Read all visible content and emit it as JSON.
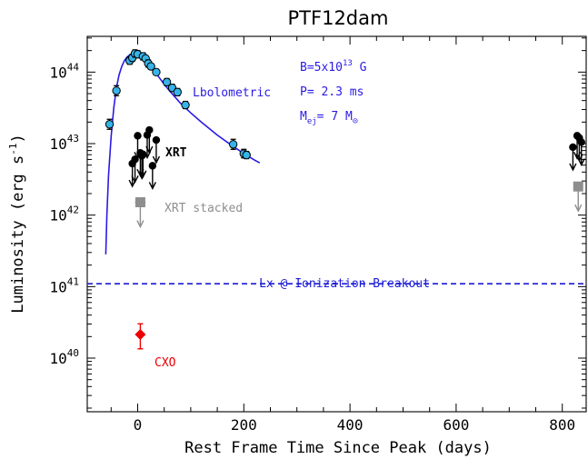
{
  "chart_data": {
    "type": "scatter",
    "title": "PTF12dam",
    "xlabel": "Rest Frame Time Since Peak (days)",
    "ylabel": "Luminosity (erg s",
    "ylabel_sup": "-1",
    "ylabel_close": ")",
    "xlim": [
      -95,
      845
    ],
    "ylim_log10": [
      39.25,
      44.5
    ],
    "y_scale": "log",
    "x_ticks": [
      0,
      200,
      400,
      600,
      800
    ],
    "x_tick_labels": [
      "0",
      "200",
      "400",
      "600",
      "800"
    ],
    "y_ticks": [
      40,
      41,
      42,
      43,
      44
    ],
    "y_tick_base": "10",
    "y_tick_exponents": [
      "40",
      "41",
      "42",
      "43",
      "44"
    ],
    "colors": {
      "axis": "#000000",
      "model": "#2a1ae6",
      "bolometric_fill": "#36b4e8",
      "xrt": "#000000",
      "stacked": "#8e8e8e",
      "cxo": "#ee0000",
      "breakout": "#1a1ad8"
    },
    "model_curve": {
      "name": "Lbolometric",
      "x": [
        -60,
        -58,
        -55,
        -50,
        -45,
        -40,
        -35,
        -30,
        -25,
        -20,
        -15,
        -10,
        -5,
        0,
        5,
        10,
        20,
        30,
        40,
        50,
        60,
        80,
        100,
        120,
        150,
        180,
        200,
        220,
        230
      ],
      "y_log10": [
        41.45,
        42.0,
        42.55,
        43.1,
        43.5,
        43.78,
        43.96,
        44.08,
        44.16,
        44.21,
        44.24,
        44.25,
        44.25,
        44.24,
        44.22,
        44.19,
        44.12,
        44.03,
        43.93,
        43.83,
        43.74,
        43.57,
        43.43,
        43.3,
        43.12,
        42.96,
        42.86,
        42.77,
        42.73
      ]
    },
    "bolometric_points": {
      "x": [
        -53,
        -40,
        -15,
        -10,
        -5,
        0,
        10,
        15,
        20,
        25,
        35,
        55,
        65,
        75,
        90,
        180,
        200,
        205
      ],
      "y_log10": [
        43.27,
        43.74,
        44.16,
        44.2,
        44.26,
        44.25,
        44.22,
        44.19,
        44.12,
        44.08,
        44.0,
        43.86,
        43.78,
        43.72,
        43.54,
        42.99,
        42.86,
        42.84
      ],
      "err": [
        0.07,
        0.07,
        0.05,
        0.05,
        0.05,
        0.05,
        0.05,
        0.04,
        0.05,
        0.04,
        0.04,
        0.05,
        0.05,
        0.05,
        0.05,
        0.07,
        0.06,
        0.05
      ]
    },
    "xrt_upper_limits": {
      "x": [
        -10,
        -5,
        0,
        5,
        8,
        10,
        18,
        22,
        28,
        35,
        820,
        828,
        832,
        836
      ],
      "y_log10": [
        42.72,
        42.78,
        43.11,
        42.87,
        42.83,
        42.85,
        43.12,
        43.19,
        42.69,
        43.05,
        42.95,
        43.11,
        43.08,
        43.02
      ]
    },
    "xrt_label": "XRT",
    "xrt_stacked": {
      "label": "XRT stacked",
      "points": [
        {
          "x": 5,
          "y_log10": 42.18,
          "xerr": 10
        },
        {
          "x": 830,
          "y_log10": 42.4,
          "xerr": 0
        }
      ]
    },
    "cxo": {
      "label": "CXO",
      "x": 5,
      "y_log10": 40.33,
      "yerr_low": 0.2,
      "yerr_high": 0.15
    },
    "breakout_line": {
      "label": "Lx @ Ionization Breakout",
      "y_log10": 41.04
    },
    "model_params": {
      "b_prefix": "B=5x10",
      "b_exp": "13",
      "b_unit": " G",
      "p": "P= 2.3 ms",
      "m_prefix": "M",
      "m_sub": "ej",
      "m_mid": "= 7 M",
      "m_sun": "⊙"
    }
  }
}
